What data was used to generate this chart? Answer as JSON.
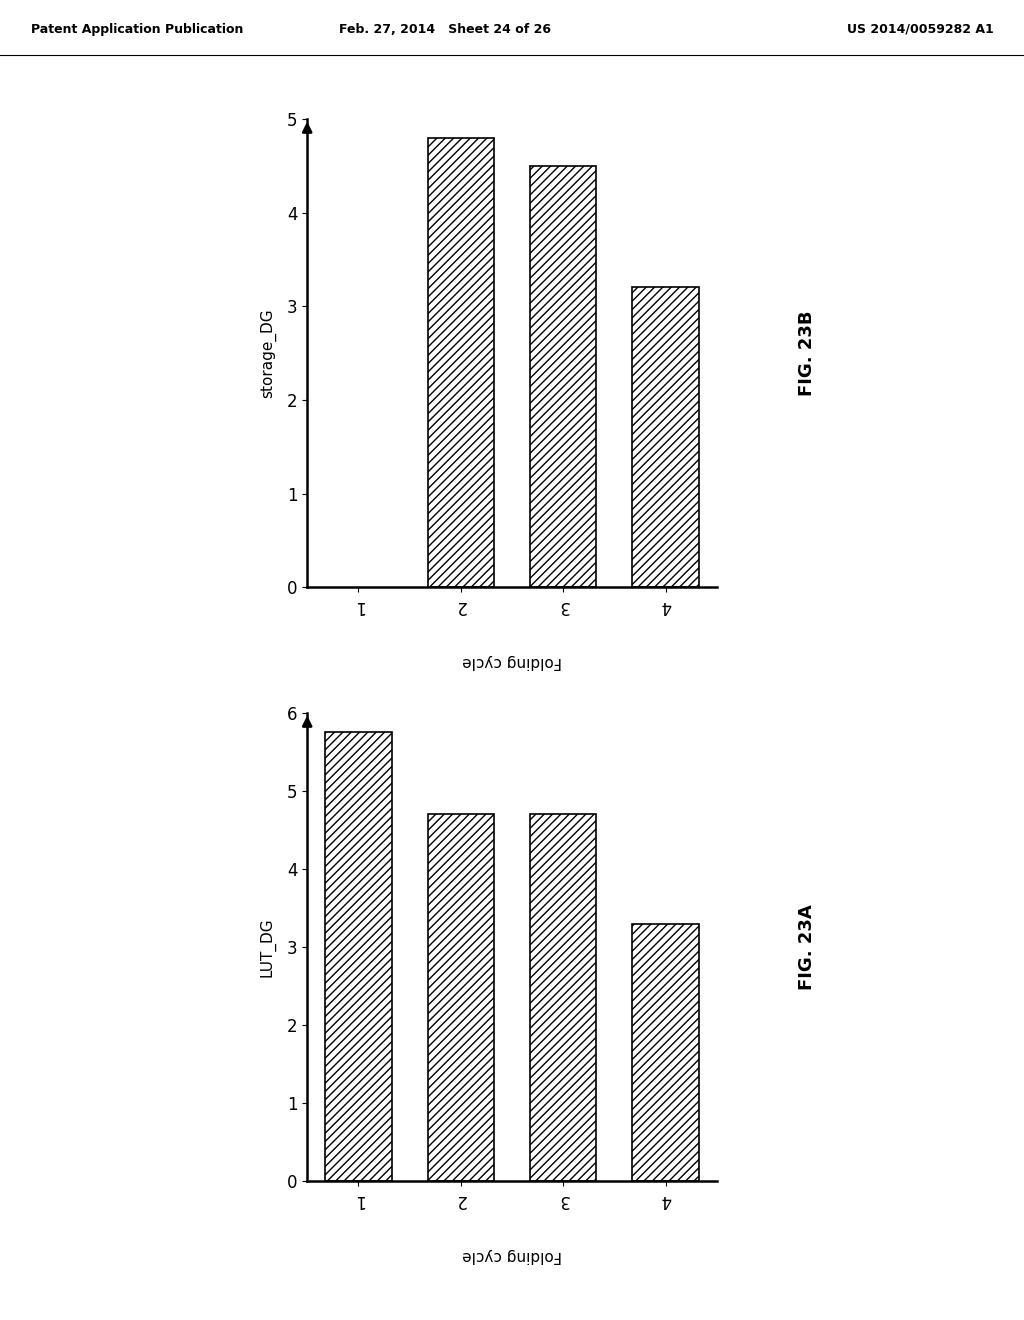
{
  "header_left": "Patent Application Publication",
  "header_mid": "Feb. 27, 2014   Sheet 24 of 26",
  "header_right": "US 2014/0059282 A1",
  "fig23b": {
    "title": "FIG. 23B",
    "ylabel": "storage_DG",
    "xlabel": "Folding cycle",
    "categories": [
      1,
      2,
      3,
      4
    ],
    "values": [
      4.8,
      4.5,
      3.2
    ],
    "bar_positions": [
      2,
      3,
      4
    ],
    "ylim": [
      0,
      5
    ],
    "yticks": [
      0,
      1,
      2,
      3,
      4,
      5
    ]
  },
  "fig23a": {
    "title": "FIG. 23A",
    "ylabel": "LUT_DG",
    "xlabel": "Folding cycle",
    "categories": [
      1,
      2,
      3,
      4
    ],
    "values": [
      5.75,
      4.7,
      4.7,
      3.3
    ],
    "bar_positions": [
      1,
      2,
      3,
      4
    ],
    "ylim": [
      0,
      6
    ],
    "yticks": [
      0,
      1,
      2,
      3,
      4,
      5,
      6
    ]
  },
  "hatch": "////",
  "background_color": "#ffffff",
  "bar_color": "#ffffff",
  "bar_edgecolor": "#000000",
  "bar_width": 0.65,
  "font_size_ticks": 12,
  "font_size_label": 11,
  "font_size_header": 9,
  "fig_title_fontsize": 13
}
